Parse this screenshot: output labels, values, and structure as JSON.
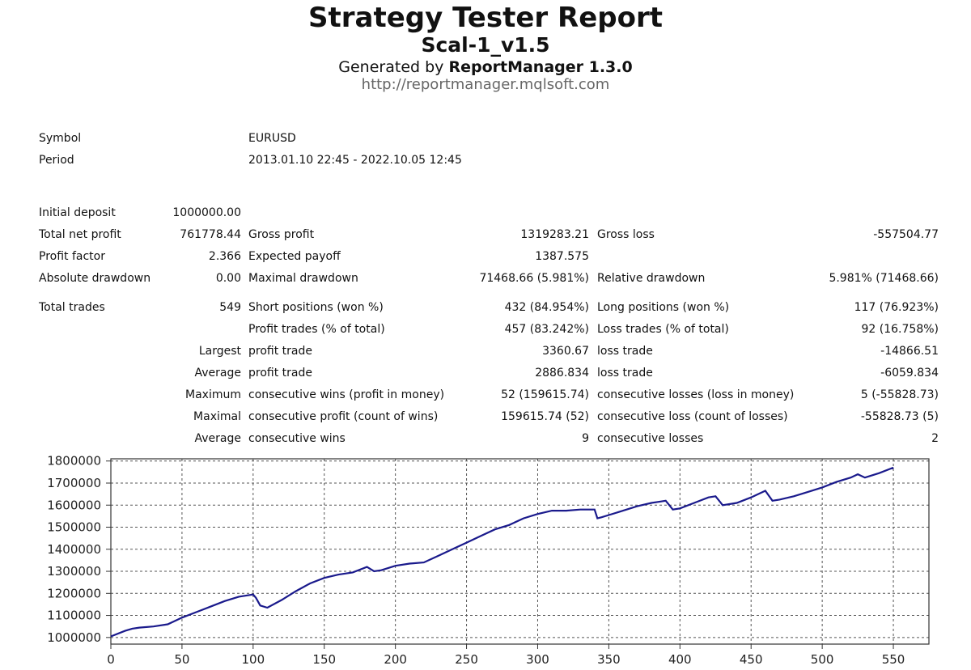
{
  "header": {
    "title": "Strategy Tester Report",
    "subtitle": "Scal-1_v1.5",
    "generated_prefix": "Generated by ",
    "generated_app": "ReportManager 1.3.0",
    "url": "http://reportmanager.mqlsoft.com"
  },
  "info": {
    "symbol_label": "Symbol",
    "symbol_value": "EURUSD",
    "period_label": "Period",
    "period_value": "2013.01.10 22:45 - 2022.10.05 12:45"
  },
  "stats": {
    "initial_deposit_label": "Initial deposit",
    "initial_deposit_value": "1000000.00",
    "total_net_profit_label": "Total net profit",
    "total_net_profit_value": "761778.44",
    "gross_profit_label": "Gross profit",
    "gross_profit_value": "1319283.21",
    "gross_loss_label": "Gross loss",
    "gross_loss_value": "-557504.77",
    "profit_factor_label": "Profit factor",
    "profit_factor_value": "2.366",
    "expected_payoff_label": "Expected payoff",
    "expected_payoff_value": "1387.575",
    "absolute_drawdown_label": "Absolute drawdown",
    "absolute_drawdown_value": "0.00",
    "maximal_drawdown_label": "Maximal drawdown",
    "maximal_drawdown_value": "71468.66 (5.981%)",
    "relative_drawdown_label": "Relative drawdown",
    "relative_drawdown_value": "5.981% (71468.66)",
    "total_trades_label": "Total trades",
    "total_trades_value": "549",
    "short_positions_label": "Short positions (won %)",
    "short_positions_value": "432 (84.954%)",
    "long_positions_label": "Long positions (won %)",
    "long_positions_value": "117 (76.923%)",
    "profit_trades_label": "Profit trades (% of total)",
    "profit_trades_value": "457 (83.242%)",
    "loss_trades_label": "Loss trades (% of total)",
    "loss_trades_value": "92 (16.758%)",
    "largest_label": "Largest",
    "largest_profit_label": "profit trade",
    "largest_profit_value": "3360.67",
    "largest_loss_label": "loss trade",
    "largest_loss_value": "-14866.51",
    "average_label": "Average",
    "average_profit_label": "profit trade",
    "average_profit_value": "2886.834",
    "average_loss_label": "loss trade",
    "average_loss_value": "-6059.834",
    "maximum_label": "Maximum",
    "max_consec_wins_label": "consecutive wins (profit in money)",
    "max_consec_wins_value": "52 (159615.74)",
    "max_consec_losses_label": "consecutive losses (loss in money)",
    "max_consec_losses_value": "5 (-55828.73)",
    "maximal_label": "Maximal",
    "maximal_consec_profit_label": "consecutive profit (count of wins)",
    "maximal_consec_profit_value": "159615.74 (52)",
    "maximal_consec_loss_label": "consecutive loss (count of losses)",
    "maximal_consec_loss_value": "-55828.73 (5)",
    "average2_label": "Average",
    "avg_consec_wins_label": "consecutive wins",
    "avg_consec_wins_value": "9",
    "avg_consec_losses_label": "consecutive losses",
    "avg_consec_losses_value": "2"
  },
  "chart_data": {
    "type": "line",
    "title": "",
    "xlabel": "",
    "ylabel": "",
    "xlim": [
      0,
      575
    ],
    "ylim": [
      970000,
      1810000
    ],
    "x_ticks": [
      0,
      50,
      100,
      150,
      200,
      250,
      300,
      350,
      400,
      450,
      500,
      550
    ],
    "y_ticks": [
      1000000,
      1100000,
      1200000,
      1300000,
      1400000,
      1500000,
      1600000,
      1700000,
      1800000
    ],
    "grid": true,
    "line_color": "#1a1a8c",
    "series": [
      {
        "x": [
          0,
          10,
          15,
          20,
          30,
          40,
          50,
          60,
          70,
          80,
          90,
          100,
          102,
          105,
          110,
          120,
          130,
          140,
          150,
          160,
          170,
          180,
          185,
          190,
          200,
          210,
          220,
          230,
          240,
          250,
          260,
          270,
          280,
          290,
          300,
          310,
          320,
          330,
          340,
          342,
          345,
          350,
          360,
          370,
          380,
          385,
          390,
          395,
          400,
          410,
          420,
          425,
          430,
          440,
          450,
          455,
          460,
          465,
          470,
          480,
          490,
          500,
          510,
          520,
          525,
          530,
          540,
          550,
          549
        ],
        "y": [
          1005000,
          1030000,
          1040000,
          1045000,
          1050000,
          1060000,
          1090000,
          1115000,
          1140000,
          1165000,
          1185000,
          1195000,
          1180000,
          1145000,
          1135000,
          1170000,
          1210000,
          1245000,
          1270000,
          1285000,
          1295000,
          1320000,
          1300000,
          1305000,
          1325000,
          1335000,
          1340000,
          1370000,
          1400000,
          1430000,
          1460000,
          1490000,
          1510000,
          1540000,
          1560000,
          1575000,
          1575000,
          1580000,
          1580000,
          1540000,
          1545000,
          1555000,
          1575000,
          1595000,
          1610000,
          1615000,
          1620000,
          1580000,
          1585000,
          1610000,
          1635000,
          1640000,
          1600000,
          1610000,
          1635000,
          1650000,
          1665000,
          1620000,
          1625000,
          1640000,
          1660000,
          1680000,
          1705000,
          1725000,
          1740000,
          1725000,
          1745000,
          1770000,
          1765000
        ]
      }
    ]
  }
}
